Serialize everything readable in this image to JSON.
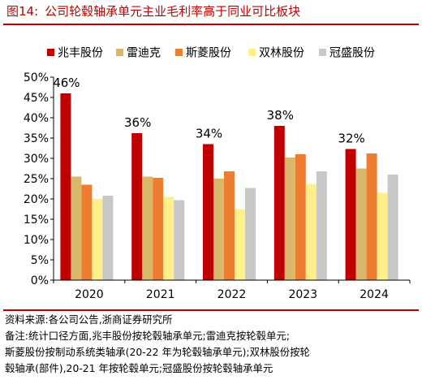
{
  "figure": {
    "number": "图14:",
    "title": "公司轮毂轴承单元主业毛利率高于同业可比板块"
  },
  "chart_data": {
    "type": "bar",
    "title": "",
    "xlabel": "",
    "ylabel": "",
    "categories": [
      "2020",
      "2021",
      "2022",
      "2023",
      "2024"
    ],
    "ylim": [
      0,
      50
    ],
    "yticks": [
      "0%",
      "5%",
      "10%",
      "15%",
      "20%",
      "25%",
      "30%",
      "35%",
      "40%",
      "45%",
      "50%"
    ],
    "grid": false,
    "legend_position": "top",
    "series": [
      {
        "name": "兆丰股份",
        "color": "#c00000",
        "values": [
          46,
          36.2,
          33.5,
          38,
          32.3
        ],
        "labels": [
          "46%",
          "36%",
          "34%",
          "38%",
          "32%"
        ]
      },
      {
        "name": "雷迪克",
        "color": "#d9b86a",
        "values": [
          25.5,
          25.5,
          25,
          30.2,
          27.5
        ]
      },
      {
        "name": "斯菱股份",
        "color": "#ed7d31",
        "values": [
          23.5,
          25.2,
          26.8,
          31,
          31.2
        ]
      },
      {
        "name": "双林股份",
        "color": "#fff08c",
        "values": [
          20,
          20.5,
          17.5,
          23.7,
          21.5
        ]
      },
      {
        "name": "冠盛股份",
        "color": "#c8c8c8",
        "values": [
          20.8,
          19.7,
          22.7,
          26.8,
          26
        ]
      }
    ]
  },
  "notes": {
    "source": "资料来源:各公司公告,浙商证券研究所",
    "remark_1": "备注:统计口径方面,兆丰股份按轮毂轴承单元;雷迪克按轮毂单元;",
    "remark_2": "斯菱股份按制动系统类轴承(20-22 年为轮毂轴承单元);双林股份按轮",
    "remark_3": "毂轴承(部件),20-21 年按轮毂单元;冠盛股份按轮毂轴承单元"
  }
}
